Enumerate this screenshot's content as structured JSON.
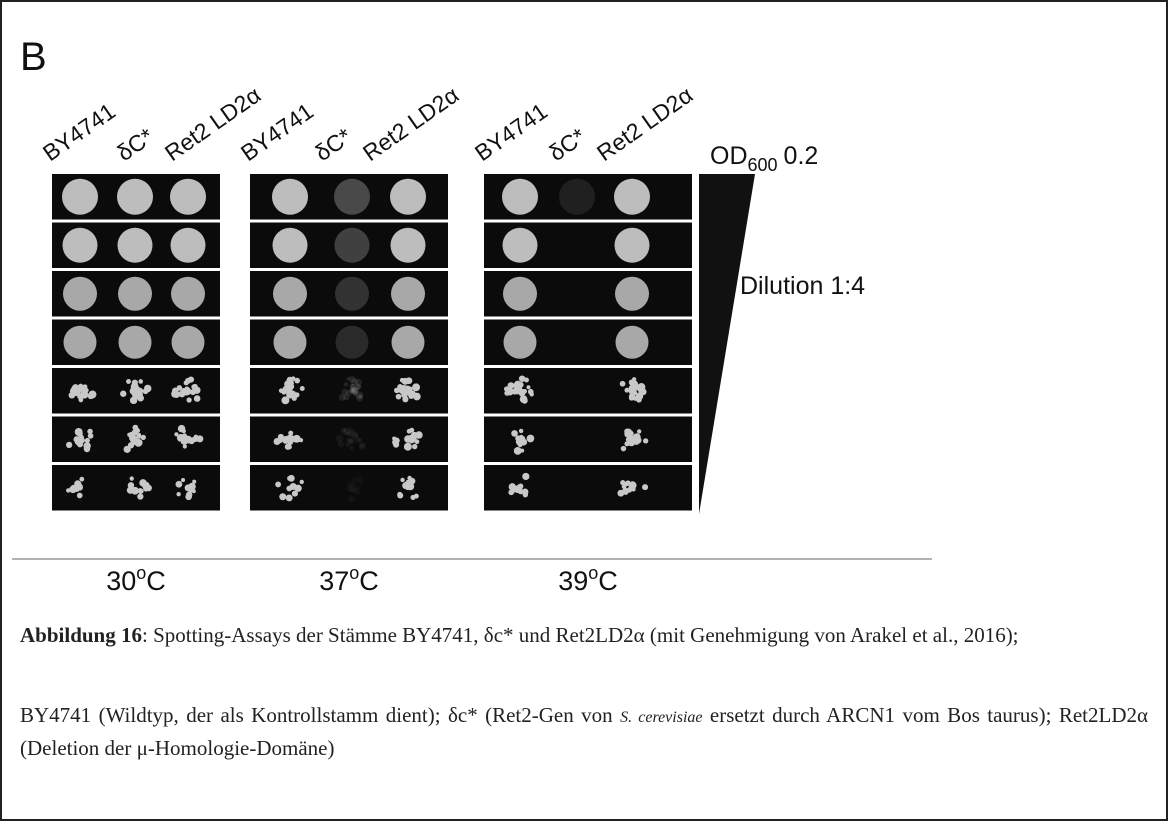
{
  "figure": {
    "panel_label": "B",
    "panels": [
      {
        "strains": [
          "BY4741",
          "δC*",
          "Ret2 LD2α"
        ],
        "temperature": {
          "number": "30",
          "degree": "o",
          "unit": "C"
        }
      },
      {
        "strains": [
          "BY4741",
          "δC*",
          "Ret2 LD2α"
        ],
        "temperature": {
          "number": "37",
          "degree": "o",
          "unit": "C"
        }
      },
      {
        "strains": [
          "BY4741",
          "δC*",
          "Ret2 LD2α"
        ],
        "temperature": {
          "number": "39",
          "degree": "o",
          "unit": "C"
        }
      }
    ],
    "od": {
      "label": "OD",
      "subscript": "600",
      "value": "0.2"
    },
    "dilution": "Dilution 1:4"
  },
  "caption": {
    "label": "Abbildung 16",
    "text": ": Spotting-Assays der Stämme BY4741, δc* und Ret2LD2α (mit Genehmigung von Arakel et al., 2016);",
    "legend": {
      "before": "BY4741 (Wildtyp, der als Kontrollstamm dient); δc* (Ret2-Gen von ",
      "species": "S. cerevisiae",
      "after": " ersetzt durch ARCN1 vom Bos taurus); Ret2LD2α (Deletion der μ-Homologie-Domäne)"
    }
  }
}
